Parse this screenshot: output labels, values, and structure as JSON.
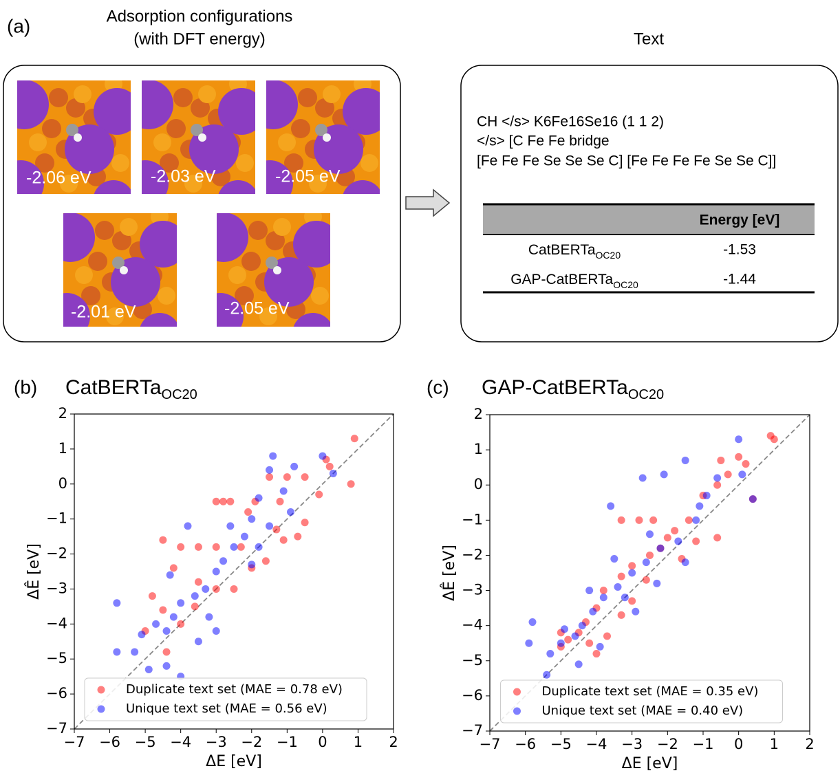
{
  "panel_a": {
    "label": "(a)",
    "title_line1": "Adsorption configurations",
    "title_line2": "(with DFT energy)",
    "energies": [
      "-2.06 eV",
      "-2.03 eV",
      "-2.05 eV",
      "-2.01 eV",
      "-2.05 eV"
    ]
  },
  "panel_text": {
    "title": "Text",
    "lines": [
      "CH </s> K6Fe16Se16 (1 1 2)",
      "</s> [C Fe Fe bridge",
      "[Fe Fe Fe Se Se Se C] [Fe Fe Fe Fe Se Se C]]"
    ],
    "table": {
      "header": "Energy [eV]",
      "rows": [
        {
          "model": "CatBERTa",
          "model_sub": "OC20",
          "energy": "-1.53"
        },
        {
          "model": "GAP-CatBERTa",
          "model_sub": "OC20",
          "energy": "-1.44"
        }
      ]
    }
  },
  "chart_data": [
    {
      "type": "scatter",
      "panel_label": "(b)",
      "title": "CatBERTa",
      "title_sub": "OC20",
      "x_label": "ΔE [eV]",
      "y_label": "ΔÊ [eV]",
      "xlim": [
        -7,
        2
      ],
      "ylim": [
        -7,
        2
      ],
      "xticks": [
        {
          "value": -7,
          "label": "−7"
        },
        {
          "value": -6,
          "label": "−6"
        },
        {
          "value": -5,
          "label": "−5"
        },
        {
          "value": -4,
          "label": "−4"
        },
        {
          "value": -3,
          "label": "−3"
        },
        {
          "value": -2,
          "label": "−2"
        },
        {
          "value": -1,
          "label": "−1"
        },
        0,
        1,
        2
      ],
      "yticks": [
        {
          "value": -7,
          "label": "−7"
        },
        {
          "value": -6,
          "label": "−6"
        },
        {
          "value": -5,
          "label": "−5"
        },
        {
          "value": -4,
          "label": "−4"
        },
        {
          "value": -3,
          "label": "−3"
        },
        {
          "value": -2,
          "label": "−2"
        },
        {
          "value": -1,
          "label": "−1"
        },
        0,
        1,
        2
      ],
      "legend": "lower center",
      "marker_alpha": 0.5,
      "series": [
        {
          "name": "Duplicate text set (MAE = 0.78 eV)",
          "color": "#ff0000",
          "x": [
            0.9,
            0.8,
            0.2,
            -0.1,
            -0.5,
            -1,
            -1.5,
            -1.2,
            -1.9,
            -2.1,
            -2.6,
            -3,
            -2.8,
            -0.5,
            -0.7,
            -1.3,
            -2.3,
            -2,
            -3,
            -3.5,
            -4,
            -4.5,
            -4.2,
            -3,
            -2.5,
            -3.5,
            -4.8,
            -4.5,
            -4,
            -5,
            -4.4,
            -3.6,
            -1.6,
            -1.1,
            0.1
          ],
          "values": [
            1.3,
            0,
            0.5,
            -0.3,
            0.2,
            0.2,
            0.2,
            -0.5,
            -0.5,
            -0.8,
            -0.5,
            -0.5,
            -0.5,
            -1.1,
            -1.5,
            -1.3,
            -1.8,
            -2.4,
            -1.8,
            -1.8,
            -1.8,
            -1.6,
            -2.4,
            -3,
            -3,
            -2.8,
            -3.2,
            -3.6,
            -4,
            -4.2,
            -4.8,
            -3.5,
            -2.2,
            -1.6,
            0.7
          ]
        },
        {
          "name": "Unique text set (MAE = 0.56 eV)",
          "color": "#0000ff",
          "x": [
            0,
            0.3,
            -0.8,
            -1.1,
            -1.5,
            -2,
            -2.2,
            -1.8,
            -2.5,
            -2.8,
            -3,
            -3.3,
            -3.6,
            -4,
            -4.2,
            -4.4,
            -4.7,
            -5.1,
            -5.8,
            -5.8,
            -4.4,
            -4,
            -3.2,
            -3.8,
            -4.3,
            -2,
            -1.5,
            -0.9,
            -1.4,
            -3,
            -4.9,
            -2.6,
            -1.8,
            -3.5,
            -5.3
          ],
          "values": [
            0.8,
            0.3,
            0.5,
            -0.2,
            0.4,
            -1,
            -1.5,
            -1.8,
            -1.8,
            -2.2,
            -2.5,
            -3,
            -3.2,
            -3.4,
            -3.8,
            -4.2,
            -4,
            -4.3,
            -3.4,
            -4.8,
            -5.2,
            -5.5,
            -3.8,
            -1.2,
            -2.6,
            -2.3,
            -1.2,
            -0.8,
            0.8,
            -4.2,
            -5.3,
            -1.2,
            -0.4,
            -4.5,
            -4.8
          ]
        }
      ]
    },
    {
      "type": "scatter",
      "panel_label": "(c)",
      "title": "GAP-CatBERTa",
      "title_sub": "OC20",
      "x_label": "ΔE [eV]",
      "y_label": "ΔÊ [eV]",
      "xlim": [
        -7,
        2
      ],
      "ylim": [
        -7,
        2
      ],
      "xticks": [
        {
          "value": -7,
          "label": "−7"
        },
        {
          "value": -6,
          "label": "−6"
        },
        {
          "value": -5,
          "label": "−5"
        },
        {
          "value": -4,
          "label": "−4"
        },
        {
          "value": -3,
          "label": "−3"
        },
        {
          "value": -2,
          "label": "−2"
        },
        {
          "value": -1,
          "label": "−1"
        },
        0,
        1,
        2
      ],
      "yticks": [
        {
          "value": -7,
          "label": "−7"
        },
        {
          "value": -6,
          "label": "−6"
        },
        {
          "value": -5,
          "label": "−5"
        },
        {
          "value": -4,
          "label": "−4"
        },
        {
          "value": -3,
          "label": "−3"
        },
        {
          "value": -2,
          "label": "−2"
        },
        {
          "value": -1,
          "label": "−1"
        },
        0,
        1,
        2
      ],
      "legend": "lower center",
      "marker_alpha": 0.5,
      "series": [
        {
          "name": "Duplicate text set (MAE = 0.35 eV)",
          "color": "#ff0000",
          "x": [
            0.9,
            1,
            0,
            0.2,
            -0.3,
            0.4,
            -0.6,
            -1,
            -1.4,
            -1.8,
            -2.4,
            -2.8,
            -3.3,
            -0.6,
            -2,
            -2.5,
            -3,
            -3.3,
            -3.8,
            -4,
            -4.3,
            -4.5,
            -4.8,
            -5,
            -4.2,
            -3.7,
            -3.3,
            -2.6,
            -1.6,
            -1.2,
            -5,
            -4,
            -3,
            -2.2,
            -0.5
          ],
          "values": [
            1.4,
            1.3,
            0.8,
            0.6,
            0.3,
            -0.4,
            0,
            -0.3,
            -1,
            -1.3,
            -1,
            -1,
            -1,
            -1.5,
            -1.5,
            -2,
            -2.3,
            -2.6,
            -3,
            -3.5,
            -3.9,
            -4.2,
            -4.4,
            -4.6,
            -4.5,
            -4.3,
            -3.7,
            -2.7,
            -2.1,
            -1.6,
            -4.2,
            -4.8,
            -3.3,
            -1.8,
            0.7
          ]
        },
        {
          "name": "Unique text set (MAE = 0.40 eV)",
          "color": "#0000ff",
          "x": [
            0,
            0.4,
            0.1,
            -0.6,
            -0.9,
            -1.5,
            -2.1,
            -2.7,
            -1.2,
            -1.7,
            -2.2,
            -2.6,
            -3,
            -3.4,
            -3.8,
            -4.1,
            -4.4,
            -4.6,
            -5,
            -5.3,
            -5.8,
            -5.9,
            -5.4,
            -4.5,
            -3.9,
            -3.6,
            -3.5,
            -2.9,
            -2.3,
            -1.5,
            -4.2,
            -4.9,
            -3.2,
            -2.5,
            -1.1
          ],
          "values": [
            1.3,
            -0.4,
            0.3,
            0.2,
            -0.3,
            0.7,
            0.3,
            0.2,
            -1,
            -1.6,
            -1.8,
            -2.2,
            -2.5,
            -2.9,
            -3.2,
            -3.6,
            -4,
            -4.3,
            -4.5,
            -4.8,
            -3.9,
            -4.5,
            -5.4,
            -5.1,
            -4.6,
            -0.6,
            -2.1,
            -3.6,
            -2.8,
            -2.2,
            -3,
            -4.1,
            -3.2,
            -1.4,
            -0.6
          ]
        }
      ]
    }
  ]
}
